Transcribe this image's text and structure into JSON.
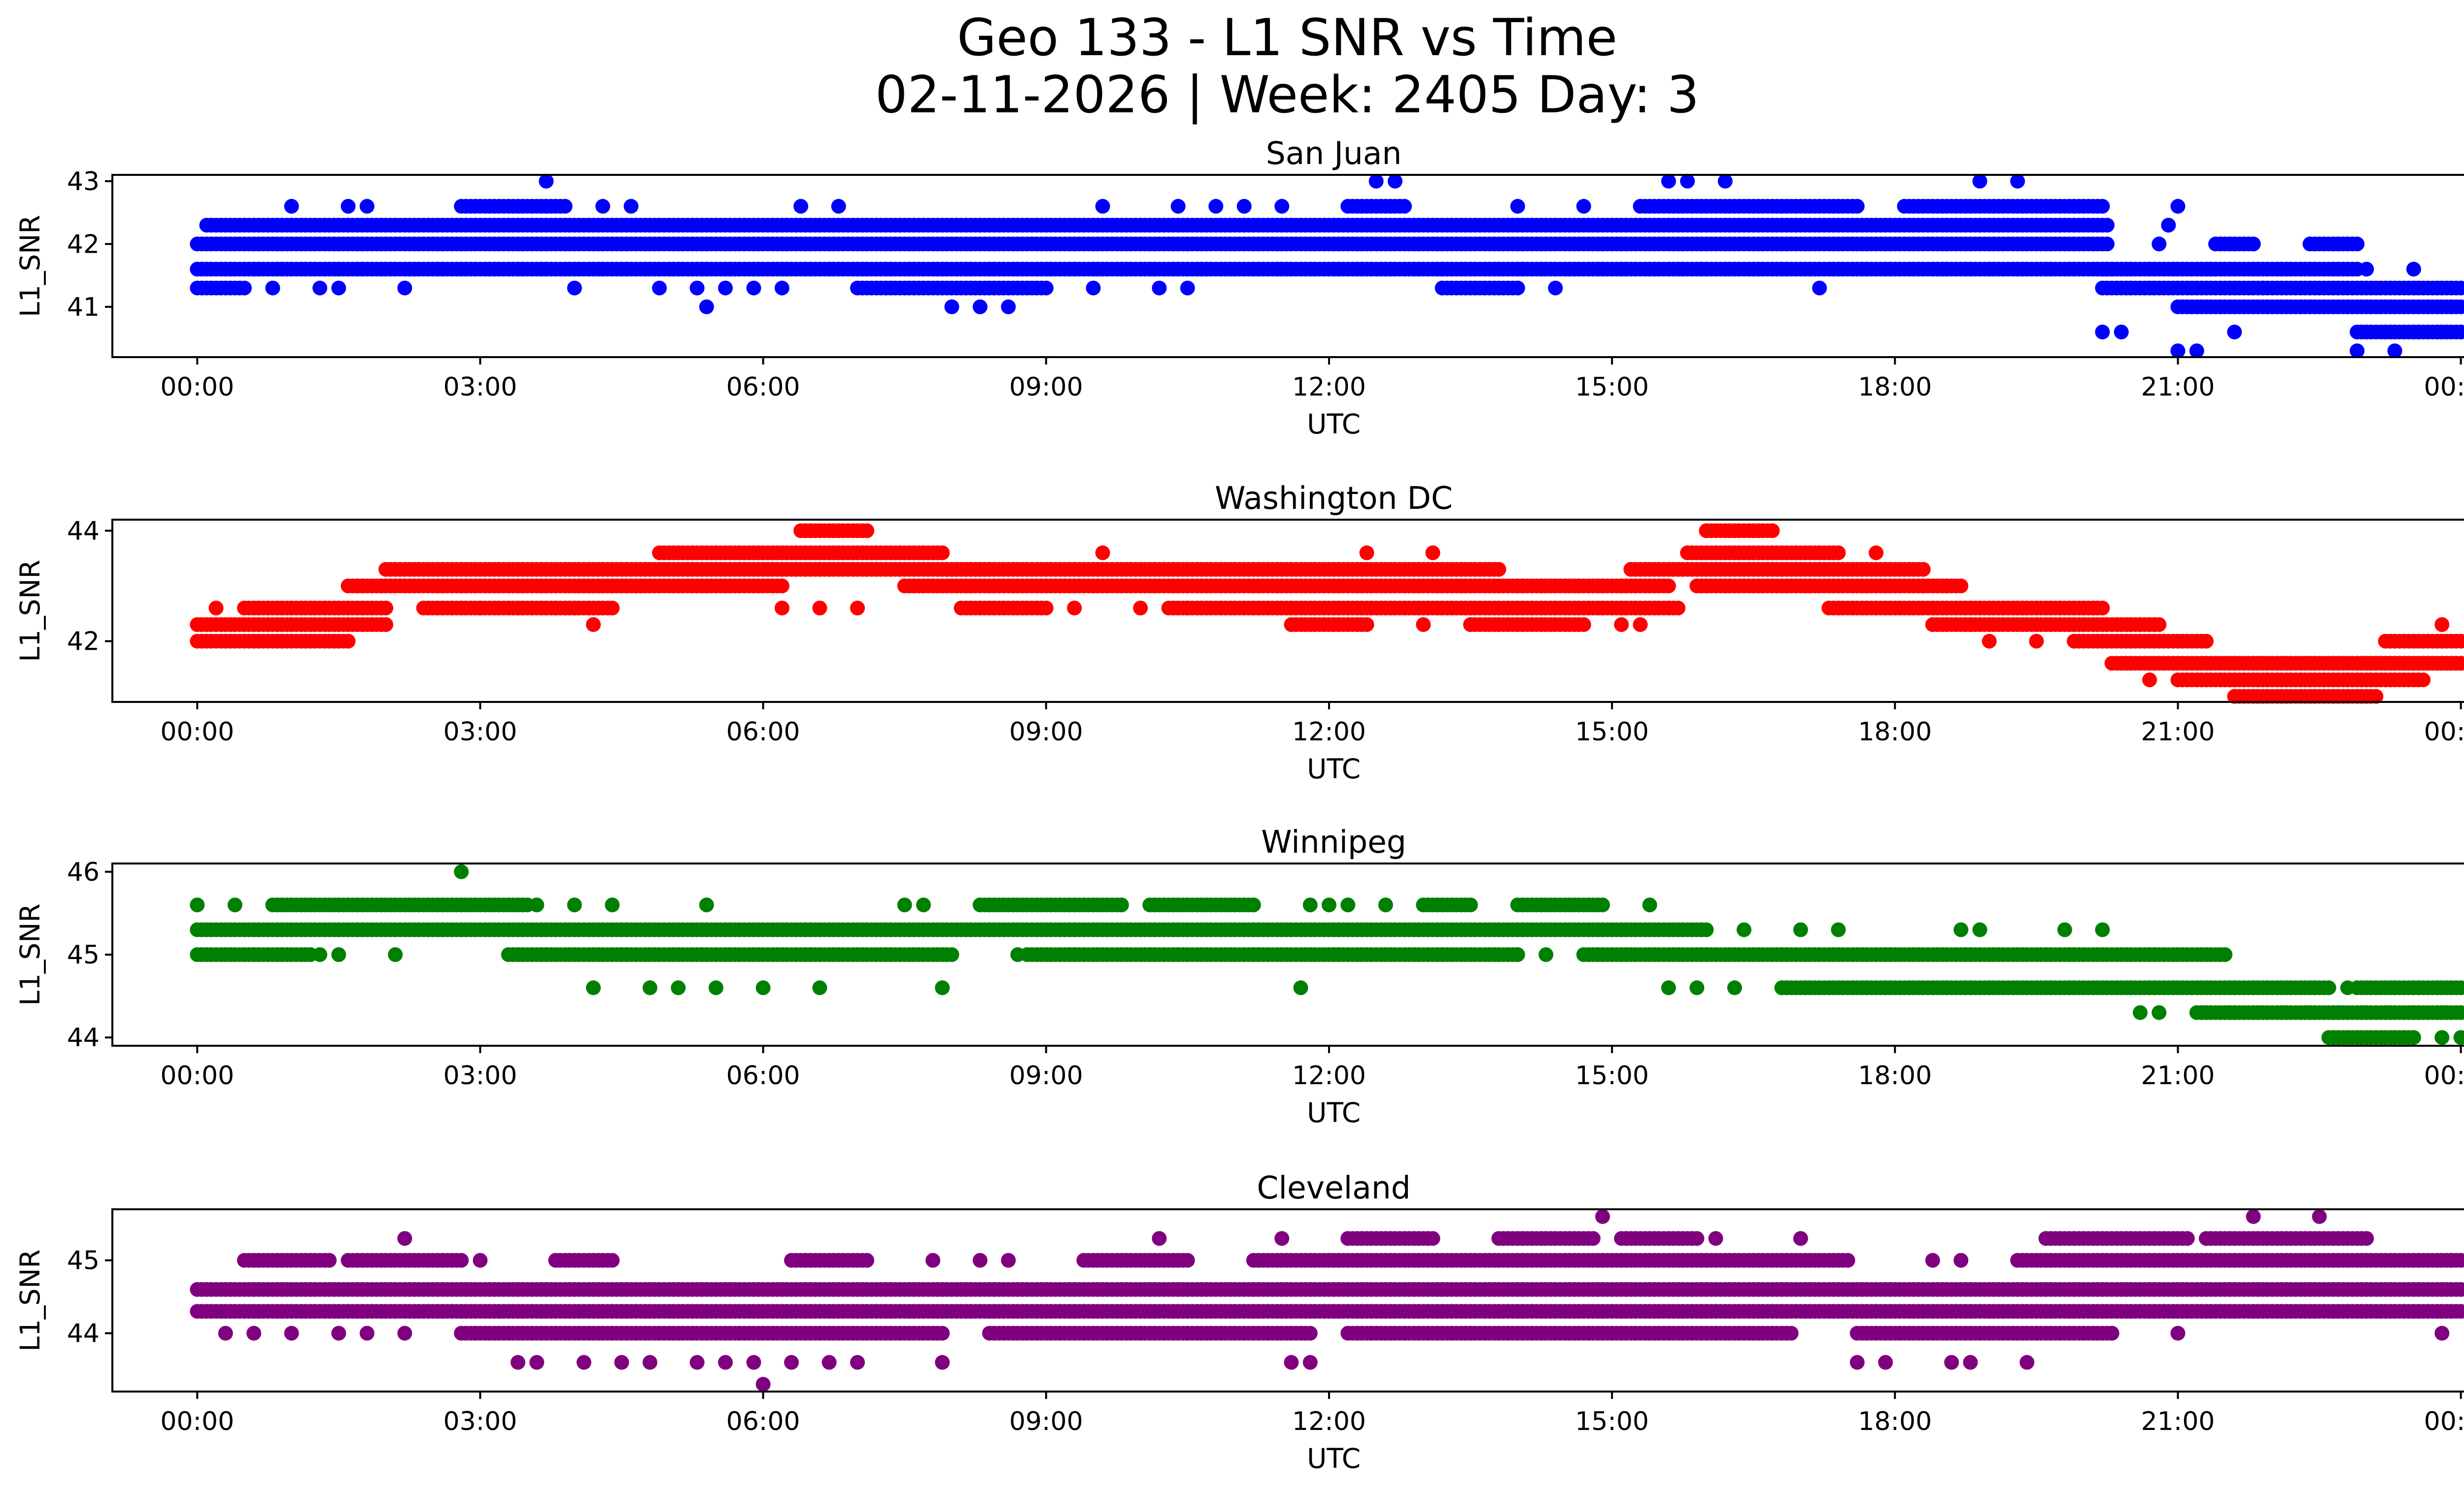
{
  "figure": {
    "title_line1": "Geo 133 - L1 SNR vs Time",
    "title_line2": "02-11-2026 | Week: 2405 Day: 3"
  },
  "chart_data": [
    {
      "type": "scatter",
      "title": "San Juan",
      "xlabel": "UTC",
      "ylabel": "L1_SNR",
      "color": "#0000ff",
      "xlim_hours": [
        -0.9,
        25.0
      ],
      "ylim": [
        40.2,
        43.1
      ],
      "xticks_hours": [
        0,
        3,
        6,
        9,
        12,
        15,
        18,
        21,
        24
      ],
      "xtick_labels": [
        "00:00",
        "03:00",
        "06:00",
        "09:00",
        "12:00",
        "15:00",
        "18:00",
        "21:00",
        "00:00"
      ],
      "yticks": [
        41,
        42,
        43
      ],
      "ytick_labels": [
        "41",
        "42",
        "43"
      ],
      "dense_bands": [
        {
          "y": 42.0,
          "from": 0.0,
          "to": 20.25
        },
        {
          "y": 41.6,
          "from": 0.0,
          "to": 20.25
        },
        {
          "y": 42.3,
          "from": 0.1,
          "to": 20.25
        },
        {
          "y": 42.6,
          "from": 2.8,
          "to": 3.9
        },
        {
          "y": 42.6,
          "from": 12.2,
          "to": 12.8
        },
        {
          "y": 42.6,
          "from": 15.3,
          "to": 17.6
        },
        {
          "y": 42.6,
          "from": 18.1,
          "to": 20.2
        },
        {
          "y": 41.3,
          "from": 0.0,
          "to": 0.5
        },
        {
          "y": 41.3,
          "from": 7.0,
          "to": 9.0
        },
        {
          "y": 41.3,
          "from": 13.2,
          "to": 14.0
        },
        {
          "y": 41.6,
          "from": 20.2,
          "to": 21.4
        },
        {
          "y": 41.6,
          "from": 21.3,
          "to": 22.9
        },
        {
          "y": 41.3,
          "from": 20.2,
          "to": 24.0
        },
        {
          "y": 41.0,
          "from": 21.0,
          "to": 24.0
        },
        {
          "y": 40.6,
          "from": 22.9,
          "to": 24.0
        },
        {
          "y": 42.0,
          "from": 21.4,
          "to": 21.8
        },
        {
          "y": 42.0,
          "from": 22.4,
          "to": 22.9
        }
      ],
      "scattered_points": [
        [
          3.7,
          43.0
        ],
        [
          12.5,
          43.0
        ],
        [
          12.7,
          43.0
        ],
        [
          15.6,
          43.0
        ],
        [
          15.8,
          43.0
        ],
        [
          16.2,
          43.0
        ],
        [
          18.9,
          43.0
        ],
        [
          19.3,
          43.0
        ],
        [
          1.0,
          42.6
        ],
        [
          1.6,
          42.6
        ],
        [
          1.8,
          42.6
        ],
        [
          4.3,
          42.6
        ],
        [
          4.6,
          42.6
        ],
        [
          6.4,
          42.6
        ],
        [
          6.8,
          42.6
        ],
        [
          9.6,
          42.6
        ],
        [
          10.4,
          42.6
        ],
        [
          10.8,
          42.6
        ],
        [
          11.1,
          42.6
        ],
        [
          11.5,
          42.6
        ],
        [
          14.0,
          42.6
        ],
        [
          14.7,
          42.6
        ],
        [
          21.0,
          42.6
        ],
        [
          0.8,
          41.3
        ],
        [
          1.3,
          41.3
        ],
        [
          1.5,
          41.3
        ],
        [
          2.2,
          41.3
        ],
        [
          4.0,
          41.3
        ],
        [
          4.9,
          41.3
        ],
        [
          5.3,
          41.3
        ],
        [
          5.6,
          41.3
        ],
        [
          5.9,
          41.3
        ],
        [
          6.2,
          41.3
        ],
        [
          9.5,
          41.3
        ],
        [
          10.2,
          41.3
        ],
        [
          10.5,
          41.3
        ],
        [
          14.4,
          41.3
        ],
        [
          17.2,
          41.3
        ],
        [
          5.4,
          41.0
        ],
        [
          8.0,
          41.0
        ],
        [
          8.3,
          41.0
        ],
        [
          8.6,
          41.0
        ],
        [
          20.2,
          40.6
        ],
        [
          20.4,
          40.6
        ],
        [
          21.0,
          40.3
        ],
        [
          21.2,
          40.3
        ],
        [
          21.6,
          40.6
        ],
        [
          22.9,
          40.3
        ],
        [
          23.3,
          40.3
        ],
        [
          20.8,
          42.0
        ],
        [
          20.9,
          42.3
        ],
        [
          23.0,
          41.6
        ],
        [
          23.5,
          41.6
        ],
        [
          20.3,
          41.6
        ],
        [
          21.9,
          41.3
        ]
      ]
    },
    {
      "type": "scatter",
      "title": "Washington DC",
      "xlabel": "UTC",
      "ylabel": "L1_SNR",
      "color": "#ff0000",
      "xlim_hours": [
        -0.9,
        25.0
      ],
      "ylim": [
        40.9,
        44.2
      ],
      "xticks_hours": [
        0,
        3,
        6,
        9,
        12,
        15,
        18,
        21,
        24
      ],
      "xtick_labels": [
        "00:00",
        "03:00",
        "06:00",
        "09:00",
        "12:00",
        "15:00",
        "18:00",
        "21:00",
        "00:00"
      ],
      "yticks": [
        42,
        44
      ],
      "ytick_labels": [
        "42",
        "44"
      ],
      "dense_bands": [
        {
          "y": 42.0,
          "from": 0.0,
          "to": 1.6
        },
        {
          "y": 42.3,
          "from": 0.0,
          "to": 2.0
        },
        {
          "y": 42.6,
          "from": 0.5,
          "to": 2.0
        },
        {
          "y": 42.6,
          "from": 2.4,
          "to": 4.4
        },
        {
          "y": 43.0,
          "from": 1.6,
          "to": 4.7
        },
        {
          "y": 43.3,
          "from": 2.0,
          "to": 8.4
        },
        {
          "y": 43.0,
          "from": 4.0,
          "to": 6.2
        },
        {
          "y": 43.6,
          "from": 4.9,
          "to": 7.9
        },
        {
          "y": 44.0,
          "from": 6.4,
          "to": 7.1
        },
        {
          "y": 43.0,
          "from": 7.5,
          "to": 15.6
        },
        {
          "y": 43.3,
          "from": 7.9,
          "to": 13.8
        },
        {
          "y": 42.6,
          "from": 8.1,
          "to": 9.0
        },
        {
          "y": 42.6,
          "from": 10.3,
          "to": 15.7
        },
        {
          "y": 42.3,
          "from": 11.6,
          "to": 12.4
        },
        {
          "y": 42.3,
          "from": 13.5,
          "to": 14.7
        },
        {
          "y": 43.3,
          "from": 15.2,
          "to": 18.3
        },
        {
          "y": 43.6,
          "from": 15.8,
          "to": 17.4
        },
        {
          "y": 44.0,
          "from": 16.0,
          "to": 16.7
        },
        {
          "y": 43.0,
          "from": 15.9,
          "to": 18.7
        },
        {
          "y": 42.6,
          "from": 17.3,
          "to": 20.2
        },
        {
          "y": 42.3,
          "from": 18.4,
          "to": 20.8
        },
        {
          "y": 42.0,
          "from": 19.9,
          "to": 21.3
        },
        {
          "y": 41.6,
          "from": 20.3,
          "to": 24.0
        },
        {
          "y": 41.3,
          "from": 21.0,
          "to": 23.6
        },
        {
          "y": 41.0,
          "from": 21.6,
          "to": 23.1
        },
        {
          "y": 41.6,
          "from": 23.0,
          "to": 24.0
        },
        {
          "y": 42.0,
          "from": 23.2,
          "to": 24.0
        }
      ],
      "scattered_points": [
        [
          0.2,
          42.6
        ],
        [
          4.2,
          42.3
        ],
        [
          3.0,
          42.6
        ],
        [
          3.4,
          42.6
        ],
        [
          3.8,
          42.6
        ],
        [
          4.0,
          42.6
        ],
        [
          6.2,
          42.6
        ],
        [
          6.6,
          42.6
        ],
        [
          7.0,
          42.6
        ],
        [
          9.6,
          43.6
        ],
        [
          10.5,
          42.6
        ],
        [
          12.4,
          43.6
        ],
        [
          13.0,
          42.3
        ],
        [
          13.1,
          43.6
        ],
        [
          13.4,
          43.0
        ],
        [
          13.7,
          43.3
        ],
        [
          14.6,
          43.0
        ],
        [
          15.1,
          42.3
        ],
        [
          15.3,
          42.3
        ],
        [
          16.8,
          43.3
        ],
        [
          17.2,
          43.3
        ],
        [
          17.8,
          43.6
        ],
        [
          18.3,
          43.0
        ],
        [
          18.8,
          42.3
        ],
        [
          19.0,
          42.0
        ],
        [
          19.3,
          42.6
        ],
        [
          19.5,
          42.0
        ],
        [
          20.1,
          42.6
        ],
        [
          20.7,
          41.3
        ],
        [
          23.8,
          42.3
        ],
        [
          9.3,
          42.6
        ],
        [
          10.0,
          42.6
        ],
        [
          12.9,
          43.0
        ]
      ]
    },
    {
      "type": "scatter",
      "title": "Winnipeg",
      "xlabel": "UTC",
      "ylabel": "L1_SNR",
      "color": "#008000",
      "xlim_hours": [
        -0.9,
        25.0
      ],
      "ylim": [
        43.9,
        46.1
      ],
      "xticks_hours": [
        0,
        3,
        6,
        9,
        12,
        15,
        18,
        21,
        24
      ],
      "xtick_labels": [
        "00:00",
        "03:00",
        "06:00",
        "09:00",
        "12:00",
        "15:00",
        "18:00",
        "21:00",
        "00:00"
      ],
      "yticks": [
        44,
        45,
        46
      ],
      "ytick_labels": [
        "44",
        "45",
        "46"
      ],
      "dense_bands": [
        {
          "y": 45.3,
          "from": 0.0,
          "to": 16.0
        },
        {
          "y": 45.0,
          "from": 0.0,
          "to": 1.2
        },
        {
          "y": 45.6,
          "from": 0.8,
          "to": 3.5
        },
        {
          "y": 45.0,
          "from": 3.3,
          "to": 8.0
        },
        {
          "y": 45.0,
          "from": 8.8,
          "to": 14.0
        },
        {
          "y": 45.0,
          "from": 14.7,
          "to": 21.5
        },
        {
          "y": 45.6,
          "from": 8.3,
          "to": 9.8
        },
        {
          "y": 45.6,
          "from": 10.1,
          "to": 11.2
        },
        {
          "y": 45.6,
          "from": 13.0,
          "to": 13.5
        },
        {
          "y": 45.6,
          "from": 14.0,
          "to": 14.9
        },
        {
          "y": 44.6,
          "from": 16.8,
          "to": 22.6
        },
        {
          "y": 44.6,
          "from": 22.9,
          "to": 24.0
        },
        {
          "y": 44.3,
          "from": 21.2,
          "to": 24.0
        },
        {
          "y": 44.0,
          "from": 22.6,
          "to": 23.5
        }
      ],
      "scattered_points": [
        [
          0.0,
          45.6
        ],
        [
          0.4,
          45.6
        ],
        [
          2.8,
          46.0
        ],
        [
          1.3,
          45.0
        ],
        [
          1.5,
          45.0
        ],
        [
          2.1,
          45.0
        ],
        [
          3.6,
          45.6
        ],
        [
          4.0,
          45.6
        ],
        [
          4.4,
          45.6
        ],
        [
          5.4,
          45.6
        ],
        [
          4.2,
          44.6
        ],
        [
          4.8,
          44.6
        ],
        [
          5.1,
          44.6
        ],
        [
          5.5,
          44.6
        ],
        [
          6.0,
          44.6
        ],
        [
          6.6,
          44.6
        ],
        [
          7.9,
          44.6
        ],
        [
          7.5,
          45.6
        ],
        [
          7.7,
          45.6
        ],
        [
          8.7,
          45.0
        ],
        [
          11.7,
          44.6
        ],
        [
          11.8,
          45.6
        ],
        [
          12.2,
          45.6
        ],
        [
          12.6,
          45.6
        ],
        [
          12.0,
          45.6
        ],
        [
          14.3,
          45.0
        ],
        [
          15.4,
          45.6
        ],
        [
          15.6,
          44.6
        ],
        [
          15.9,
          44.6
        ],
        [
          16.3,
          44.6
        ],
        [
          16.4,
          45.3
        ],
        [
          17.0,
          45.3
        ],
        [
          17.4,
          45.3
        ],
        [
          18.7,
          45.3
        ],
        [
          18.9,
          45.3
        ],
        [
          19.8,
          45.3
        ],
        [
          20.2,
          45.3
        ],
        [
          20.6,
          44.3
        ],
        [
          20.8,
          44.3
        ],
        [
          22.8,
          44.6
        ],
        [
          24.0,
          44.0
        ],
        [
          23.8,
          44.0
        ]
      ]
    },
    {
      "type": "scatter",
      "title": "Cleveland",
      "xlabel": "UTC",
      "ylabel": "L1_SNR",
      "color": "#800080",
      "xlim_hours": [
        -0.9,
        25.0
      ],
      "ylim": [
        43.2,
        45.7
      ],
      "xticks_hours": [
        0,
        3,
        6,
        9,
        12,
        15,
        18,
        21,
        24
      ],
      "xtick_labels": [
        "00:00",
        "03:00",
        "06:00",
        "09:00",
        "12:00",
        "15:00",
        "18:00",
        "21:00",
        "00:00"
      ],
      "yticks": [
        44,
        45
      ],
      "ytick_labels": [
        "44",
        "45"
      ],
      "dense_bands": [
        {
          "y": 44.6,
          "from": 0.0,
          "to": 24.0
        },
        {
          "y": 44.3,
          "from": 0.0,
          "to": 24.0
        },
        {
          "y": 44.0,
          "from": 2.8,
          "to": 7.9
        },
        {
          "y": 44.0,
          "from": 8.4,
          "to": 11.8
        },
        {
          "y": 44.0,
          "from": 12.2,
          "to": 16.9
        },
        {
          "y": 44.0,
          "from": 17.6,
          "to": 20.3
        },
        {
          "y": 45.0,
          "from": 0.5,
          "to": 1.4
        },
        {
          "y": 45.0,
          "from": 1.6,
          "to": 2.8
        },
        {
          "y": 45.0,
          "from": 3.8,
          "to": 4.4
        },
        {
          "y": 45.0,
          "from": 6.3,
          "to": 7.1
        },
        {
          "y": 45.0,
          "from": 9.4,
          "to": 10.5
        },
        {
          "y": 45.0,
          "from": 11.2,
          "to": 12.0
        },
        {
          "y": 45.0,
          "from": 12.0,
          "to": 17.5
        },
        {
          "y": 45.0,
          "from": 19.3,
          "to": 24.0
        },
        {
          "y": 45.3,
          "from": 12.2,
          "to": 13.1
        },
        {
          "y": 45.3,
          "from": 13.8,
          "to": 14.8
        },
        {
          "y": 45.3,
          "from": 15.1,
          "to": 15.9
        },
        {
          "y": 45.3,
          "from": 19.6,
          "to": 21.1
        },
        {
          "y": 45.3,
          "from": 21.3,
          "to": 23.0
        }
      ],
      "scattered_points": [
        [
          0.3,
          44.0
        ],
        [
          0.6,
          44.0
        ],
        [
          1.0,
          44.0
        ],
        [
          1.5,
          44.0
        ],
        [
          1.8,
          44.0
        ],
        [
          2.2,
          44.0
        ],
        [
          2.2,
          45.3
        ],
        [
          3.0,
          45.0
        ],
        [
          3.4,
          43.6
        ],
        [
          3.6,
          43.6
        ],
        [
          4.1,
          43.6
        ],
        [
          4.5,
          43.6
        ],
        [
          4.8,
          43.6
        ],
        [
          5.3,
          43.6
        ],
        [
          5.6,
          43.6
        ],
        [
          5.9,
          43.6
        ],
        [
          6.0,
          43.3
        ],
        [
          6.3,
          43.6
        ],
        [
          6.7,
          43.6
        ],
        [
          7.0,
          43.6
        ],
        [
          7.9,
          43.6
        ],
        [
          7.8,
          45.0
        ],
        [
          8.3,
          45.0
        ],
        [
          8.6,
          45.0
        ],
        [
          10.2,
          45.3
        ],
        [
          11.6,
          43.6
        ],
        [
          11.8,
          43.6
        ],
        [
          11.5,
          45.3
        ],
        [
          12.3,
          44.0
        ],
        [
          14.9,
          45.6
        ],
        [
          13.5,
          44.0
        ],
        [
          17.0,
          45.3
        ],
        [
          16.1,
          45.3
        ],
        [
          17.6,
          43.6
        ],
        [
          17.9,
          43.6
        ],
        [
          18.6,
          43.6
        ],
        [
          18.8,
          43.6
        ],
        [
          19.4,
          43.6
        ],
        [
          18.4,
          45.0
        ],
        [
          18.7,
          45.0
        ],
        [
          21.8,
          45.6
        ],
        [
          22.5,
          45.6
        ],
        [
          20.3,
          44.0
        ],
        [
          21.0,
          44.0
        ],
        [
          23.8,
          44.0
        ],
        [
          23.9,
          45.0
        ]
      ]
    }
  ]
}
